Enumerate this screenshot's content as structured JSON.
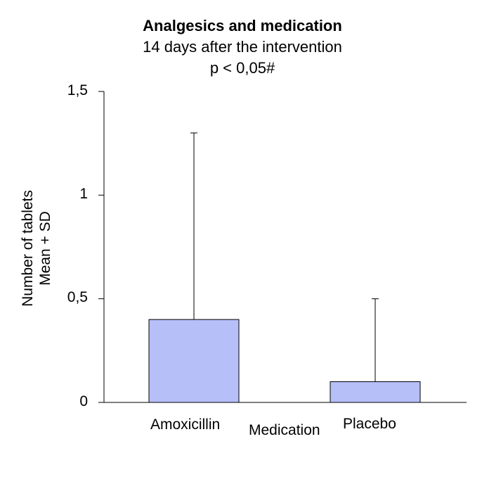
{
  "chart_data": {
    "type": "bar",
    "title": "Analgesics and medication",
    "subtitle": "14 days after the intervention",
    "annotation": "p < 0,05#",
    "categories": [
      "Amoxicillin",
      "Placebo"
    ],
    "values": [
      0.4,
      0.1
    ],
    "error_plus": [
      0.9,
      0.4
    ],
    "xlabel": "Medication",
    "ylabel_lines": [
      "Number of tablets",
      "Mean + SD"
    ],
    "ylim": [
      0,
      1.5
    ],
    "yticks": [
      {
        "value": 0,
        "label": "0"
      },
      {
        "value": 0.5,
        "label": "0,5"
      },
      {
        "value": 1,
        "label": "1"
      },
      {
        "value": 1.5,
        "label": "1,5"
      }
    ],
    "bar_color": "#b7bff8",
    "grid": false
  }
}
